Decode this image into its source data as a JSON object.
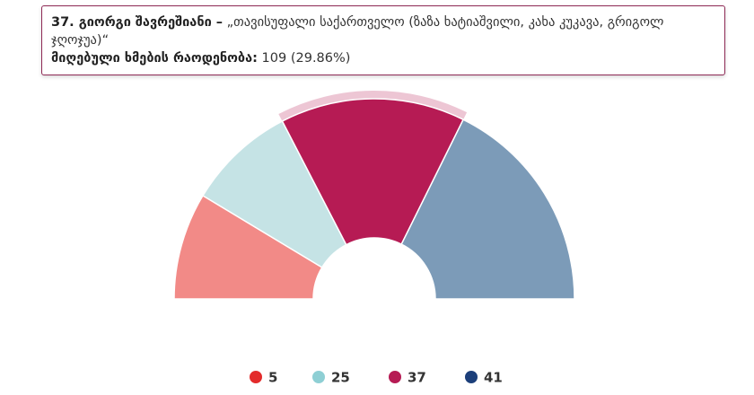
{
  "chart_data": {
    "type": "semi-donut",
    "categories": [
      "5",
      "25",
      "37",
      "41"
    ],
    "values": [
      63,
      64,
      109,
      129
    ],
    "colors": [
      "#f28a87",
      "#c5e3e5",
      "#b61b54",
      "#7c9bb8"
    ],
    "legend_colors": [
      "#e32b2b",
      "#8ecfd4",
      "#b61b54",
      "#1c3f7a"
    ],
    "highlight_index": 2,
    "tooltip": {
      "title": "37. გიორგი შავრეშიანი –",
      "subtitle": "„თავისუფალი საქართველო (ზაზა ხატიაშვილი, კახა კუკავა, გრიგოლ ჯღოჯუა)“",
      "label": "მიღებული ხმების რაოდენობა:",
      "value": "109 (29.86%)"
    }
  }
}
